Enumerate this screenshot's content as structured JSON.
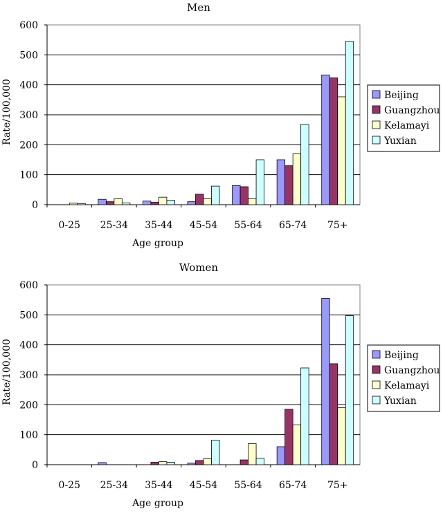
{
  "chart_data": [
    {
      "type": "bar",
      "title": "Men",
      "xlabel": "Age group",
      "ylabel": "Rate/100,000",
      "ylim": [
        0,
        600
      ],
      "yticks": [
        0,
        100,
        200,
        300,
        400,
        500,
        600
      ],
      "grid": true,
      "legend_position": "right",
      "categories": [
        "0-25",
        "25-34",
        "35-44",
        "45-54",
        "55-64",
        "65-74",
        "75+"
      ],
      "series": [
        {
          "name": "Beijing",
          "color": "#9999ff",
          "values": [
            0,
            18,
            12,
            10,
            64,
            150,
            433
          ]
        },
        {
          "name": "Guangzhou",
          "color": "#993366",
          "values": [
            0,
            10,
            8,
            35,
            60,
            130,
            423
          ]
        },
        {
          "name": "Kelamayi",
          "color": "#ffffcc",
          "values": [
            5,
            20,
            25,
            20,
            20,
            170,
            360
          ]
        },
        {
          "name": "Yuxian",
          "color": "#ccffff",
          "values": [
            4,
            6,
            15,
            62,
            150,
            268,
            545
          ]
        }
      ]
    },
    {
      "type": "bar",
      "title": "Women",
      "xlabel": "Age group",
      "ylabel": "Rate/100,000",
      "ylim": [
        0,
        600
      ],
      "yticks": [
        0,
        100,
        200,
        300,
        400,
        500,
        600
      ],
      "grid": true,
      "legend_position": "right",
      "categories": [
        "0-25",
        "25-34",
        "35-44",
        "45-54",
        "55-64",
        "65-74",
        "75+"
      ],
      "series": [
        {
          "name": "Beijing",
          "color": "#9999ff",
          "values": [
            0,
            7,
            0,
            5,
            0,
            60,
            555
          ]
        },
        {
          "name": "Guangzhou",
          "color": "#993366",
          "values": [
            0,
            0,
            8,
            14,
            16,
            185,
            337
          ]
        },
        {
          "name": "Kelamayi",
          "color": "#ffffcc",
          "values": [
            0,
            0,
            10,
            20,
            70,
            133,
            190
          ]
        },
        {
          "name": "Yuxian",
          "color": "#ccffff",
          "values": [
            0,
            0,
            8,
            82,
            22,
            323,
            497
          ]
        }
      ]
    }
  ]
}
